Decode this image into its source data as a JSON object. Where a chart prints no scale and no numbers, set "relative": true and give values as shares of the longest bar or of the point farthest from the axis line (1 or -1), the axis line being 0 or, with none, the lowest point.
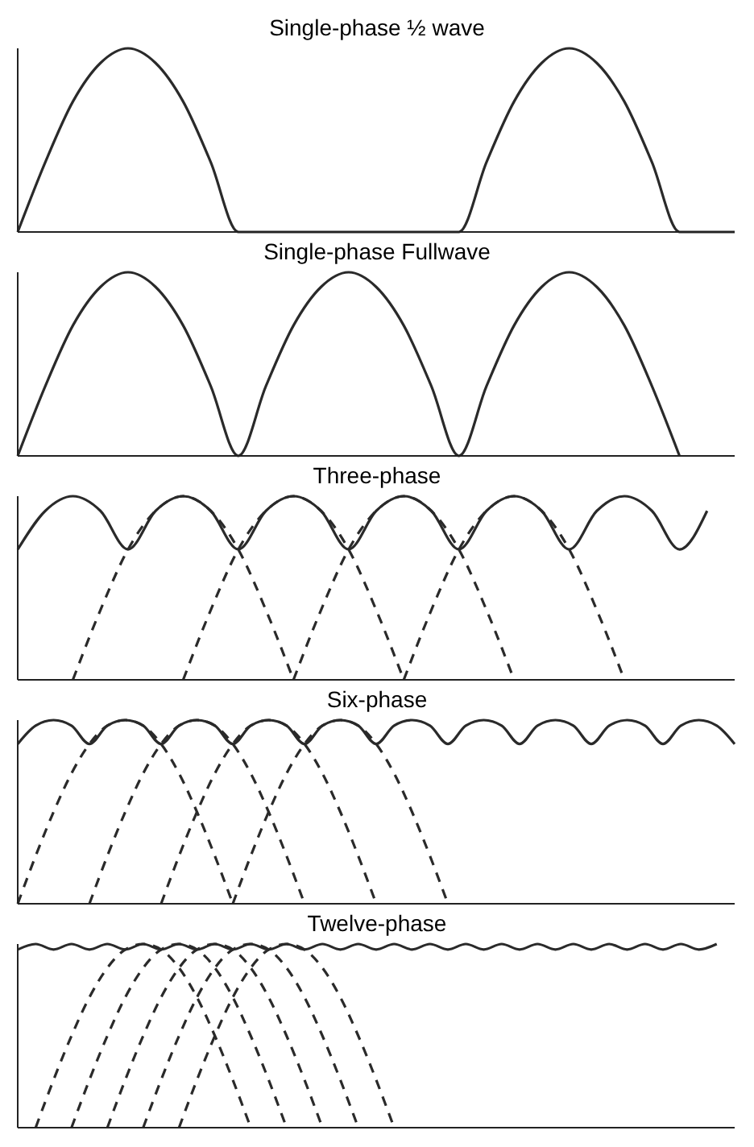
{
  "chart_data": [
    {
      "type": "line",
      "title": "Single-phase ½ wave",
      "relative": true,
      "categories": [
        null,
        null,
        null,
        null,
        null,
        null,
        null,
        null,
        null,
        null,
        null,
        null,
        null,
        null,
        null,
        null,
        null,
        null,
        null,
        null,
        null,
        null,
        null,
        null,
        null,
        null,
        null
      ],
      "series": [
        {
          "color": "#2a2a2a",
          "values": [
            0,
            0.38,
            0.71,
            0.92,
            1,
            0.92,
            0.71,
            0.38,
            0,
            0,
            0,
            0,
            0,
            0,
            0,
            0,
            0,
            0.38,
            0.71,
            0.92,
            1,
            0.92,
            0.71,
            0.38,
            0,
            0,
            0
          ]
        }
      ]
    },
    {
      "type": "line",
      "title": "Single-phase Fullwave",
      "relative": true,
      "categories": [
        null,
        null,
        null,
        null,
        null,
        null,
        null,
        null,
        null,
        null,
        null,
        null,
        null,
        null,
        null,
        null,
        null,
        null,
        null,
        null,
        null,
        null,
        null,
        null,
        null,
        null,
        null
      ],
      "series": [
        {
          "color": "#2a2a2a",
          "values": [
            0,
            0.38,
            0.71,
            0.92,
            1,
            0.92,
            0.71,
            0.38,
            0,
            0.38,
            0.71,
            0.92,
            1,
            0.92,
            0.71,
            0.38,
            0,
            0.38,
            0.71,
            0.92,
            1,
            0.92,
            0.71,
            0.38,
            0,
            null,
            null
          ]
        }
      ]
    },
    {
      "type": "line",
      "title": "Three-phase",
      "relative": true,
      "categories": [
        null,
        null,
        null,
        null,
        null,
        null,
        null,
        null,
        null,
        null,
        null,
        null,
        null,
        null,
        null,
        null,
        null,
        null,
        null,
        null,
        null,
        null,
        null,
        null,
        null,
        null,
        null
      ],
      "series": [
        {
          "color": "#2a2a2a",
          "values": [
            0.71,
            0.92,
            1,
            0.92,
            0.71,
            0.92,
            1,
            0.92,
            0.71,
            0.92,
            1,
            0.92,
            0.71,
            0.92,
            1,
            0.92,
            0.71,
            0.92,
            1,
            0.92,
            0.71,
            0.92,
            1,
            0.92,
            0.71,
            0.92,
            null
          ]
        },
        {
          "color": "#2a2a2a",
          "line_style": "dashed",
          "values": [
            null,
            null,
            0,
            0.38,
            0.71,
            0.92,
            1,
            0.92,
            0.71,
            0.38,
            0,
            null,
            null,
            null,
            null,
            null,
            null,
            null,
            null,
            null,
            null,
            null,
            null,
            null,
            null,
            null,
            null
          ]
        },
        {
          "color": "#2a2a2a",
          "line_style": "dashed",
          "values": [
            null,
            null,
            null,
            null,
            null,
            null,
            0,
            0.38,
            0.71,
            0.92,
            1,
            0.92,
            0.71,
            0.38,
            0,
            null,
            null,
            null,
            null,
            null,
            null,
            null,
            null,
            null,
            null,
            null,
            null
          ]
        },
        {
          "color": "#2a2a2a",
          "line_style": "dashed",
          "values": [
            null,
            null,
            null,
            null,
            null,
            null,
            null,
            null,
            null,
            null,
            0,
            0.38,
            0.71,
            0.92,
            1,
            0.92,
            0.71,
            0.38,
            0,
            null,
            null,
            null,
            null,
            null,
            null,
            null,
            null
          ]
        },
        {
          "color": "#2a2a2a",
          "line_style": "dashed",
          "values": [
            null,
            null,
            null,
            null,
            null,
            null,
            null,
            null,
            null,
            null,
            null,
            null,
            null,
            null,
            0,
            0.38,
            0.71,
            0.92,
            1,
            0.92,
            0.71,
            0.38,
            0,
            null,
            null,
            null,
            null
          ]
        }
      ]
    },
    {
      "type": "line",
      "title": "Six-phase",
      "relative": true,
      "categories": [
        null,
        null,
        null,
        null,
        null,
        null,
        null,
        null,
        null,
        null,
        null,
        null,
        null,
        null,
        null,
        null,
        null,
        null,
        null,
        null,
        null,
        null,
        null,
        null,
        null,
        null,
        null,
        null,
        null,
        null,
        null,
        null,
        null,
        null,
        null,
        null,
        null,
        null,
        null,
        null,
        null
      ],
      "series": [
        {
          "color": "#2a2a2a",
          "values": [
            0.87,
            0.97,
            1,
            0.97,
            0.87,
            0.97,
            1,
            0.97,
            0.87,
            0.97,
            1,
            0.97,
            0.87,
            0.97,
            1,
            0.97,
            0.87,
            0.97,
            1,
            0.97,
            0.87,
            0.97,
            1,
            0.97,
            0.87,
            0.97,
            1,
            0.97,
            0.87,
            0.97,
            1,
            0.97,
            0.87,
            0.97,
            1,
            0.97,
            0.87,
            0.97,
            1,
            0.97,
            0.87
          ]
        },
        {
          "color": "#2a2a2a",
          "line_style": "dashed",
          "values": [
            0,
            0.26,
            0.5,
            0.71,
            0.87,
            0.97,
            1,
            0.97,
            0.87,
            0.71,
            0.5,
            0.26,
            0,
            null,
            null,
            null,
            null,
            null,
            null,
            null,
            null,
            null,
            null,
            null,
            null,
            null,
            null,
            null,
            null,
            null,
            null,
            null,
            null,
            null,
            null,
            null,
            null,
            null,
            null,
            null,
            null
          ]
        },
        {
          "color": "#2a2a2a",
          "line_style": "dashed",
          "values": [
            null,
            null,
            null,
            null,
            0,
            0.26,
            0.5,
            0.71,
            0.87,
            0.97,
            1,
            0.97,
            0.87,
            0.71,
            0.5,
            0.26,
            0,
            null,
            null,
            null,
            null,
            null,
            null,
            null,
            null,
            null,
            null,
            null,
            null,
            null,
            null,
            null,
            null,
            null,
            null,
            null,
            null,
            null,
            null,
            null,
            null
          ]
        },
        {
          "color": "#2a2a2a",
          "line_style": "dashed",
          "values": [
            null,
            null,
            null,
            null,
            null,
            null,
            null,
            null,
            0,
            0.26,
            0.5,
            0.71,
            0.87,
            0.97,
            1,
            0.97,
            0.87,
            0.71,
            0.5,
            0.26,
            0,
            null,
            null,
            null,
            null,
            null,
            null,
            null,
            null,
            null,
            null,
            null,
            null,
            null,
            null,
            null,
            null,
            null,
            null,
            null,
            null
          ]
        },
        {
          "color": "#2a2a2a",
          "line_style": "dashed",
          "values": [
            null,
            null,
            null,
            null,
            null,
            null,
            null,
            null,
            null,
            null,
            null,
            null,
            0,
            0.26,
            0.5,
            0.71,
            0.87,
            0.97,
            1,
            0.97,
            0.87,
            0.71,
            0.5,
            0.26,
            0,
            null,
            null,
            null,
            null,
            null,
            null,
            null,
            null,
            null,
            null,
            null,
            null,
            null,
            null,
            null,
            null
          ]
        }
      ]
    },
    {
      "type": "line",
      "title": "Twelve-phase",
      "relative": true,
      "categories": [
        null,
        null,
        null,
        null,
        null,
        null,
        null,
        null,
        null,
        null,
        null,
        null,
        null,
        null,
        null,
        null,
        null,
        null,
        null,
        null,
        null,
        null,
        null,
        null,
        null,
        null,
        null,
        null,
        null,
        null,
        null,
        null,
        null,
        null,
        null,
        null,
        null,
        null,
        null,
        null,
        null
      ],
      "series": [
        {
          "color": "#2a2a2a",
          "values": [
            0.97,
            1,
            0.97,
            1,
            0.97,
            1,
            0.97,
            1,
            0.97,
            1,
            0.97,
            1,
            0.97,
            1,
            0.97,
            1,
            0.97,
            1,
            0.97,
            1,
            0.97,
            1,
            0.97,
            1,
            0.97,
            1,
            0.97,
            1,
            0.97,
            1,
            0.97,
            1,
            0.97,
            1,
            0.97,
            1,
            0.97,
            1,
            0.97,
            1,
            null
          ]
        },
        {
          "color": "#2a2a2a",
          "line_style": "dashed",
          "values": [
            null,
            0,
            0.26,
            0.5,
            0.71,
            0.87,
            0.97,
            1,
            0.97,
            0.87,
            0.71,
            0.5,
            0.26,
            0,
            null,
            null,
            null,
            null,
            null,
            null,
            null,
            null,
            null,
            null,
            null,
            null,
            null,
            null,
            null,
            null,
            null,
            null,
            null,
            null,
            null,
            null,
            null,
            null,
            null,
            null,
            null
          ]
        },
        {
          "color": "#2a2a2a",
          "line_style": "dashed",
          "values": [
            null,
            null,
            null,
            0,
            0.26,
            0.5,
            0.71,
            0.87,
            0.97,
            1,
            0.97,
            0.87,
            0.71,
            0.5,
            0.26,
            0,
            null,
            null,
            null,
            null,
            null,
            null,
            null,
            null,
            null,
            null,
            null,
            null,
            null,
            null,
            null,
            null,
            null,
            null,
            null,
            null,
            null,
            null,
            null,
            null,
            null
          ]
        },
        {
          "color": "#2a2a2a",
          "line_style": "dashed",
          "values": [
            null,
            null,
            null,
            null,
            null,
            0,
            0.26,
            0.5,
            0.71,
            0.87,
            0.97,
            1,
            0.97,
            0.87,
            0.71,
            0.5,
            0.26,
            0,
            null,
            null,
            null,
            null,
            null,
            null,
            null,
            null,
            null,
            null,
            null,
            null,
            null,
            null,
            null,
            null,
            null,
            null,
            null,
            null,
            null,
            null,
            null
          ]
        },
        {
          "color": "#2a2a2a",
          "line_style": "dashed",
          "values": [
            null,
            null,
            null,
            null,
            null,
            null,
            null,
            0,
            0.26,
            0.5,
            0.71,
            0.87,
            0.97,
            1,
            0.97,
            0.87,
            0.71,
            0.5,
            0.26,
            0,
            null,
            null,
            null,
            null,
            null,
            null,
            null,
            null,
            null,
            null,
            null,
            null,
            null,
            null,
            null,
            null,
            null,
            null,
            null,
            null,
            null
          ]
        },
        {
          "color": "#2a2a2a",
          "line_style": "dashed",
          "values": [
            null,
            null,
            null,
            null,
            null,
            null,
            null,
            null,
            null,
            0,
            0.26,
            0.5,
            0.71,
            0.87,
            0.97,
            1,
            0.97,
            0.87,
            0.71,
            0.5,
            0.26,
            0,
            null,
            null,
            null,
            null,
            null,
            null,
            null,
            null,
            null,
            null,
            null,
            null,
            null,
            null,
            null,
            null,
            null,
            null,
            null
          ]
        }
      ]
    }
  ]
}
